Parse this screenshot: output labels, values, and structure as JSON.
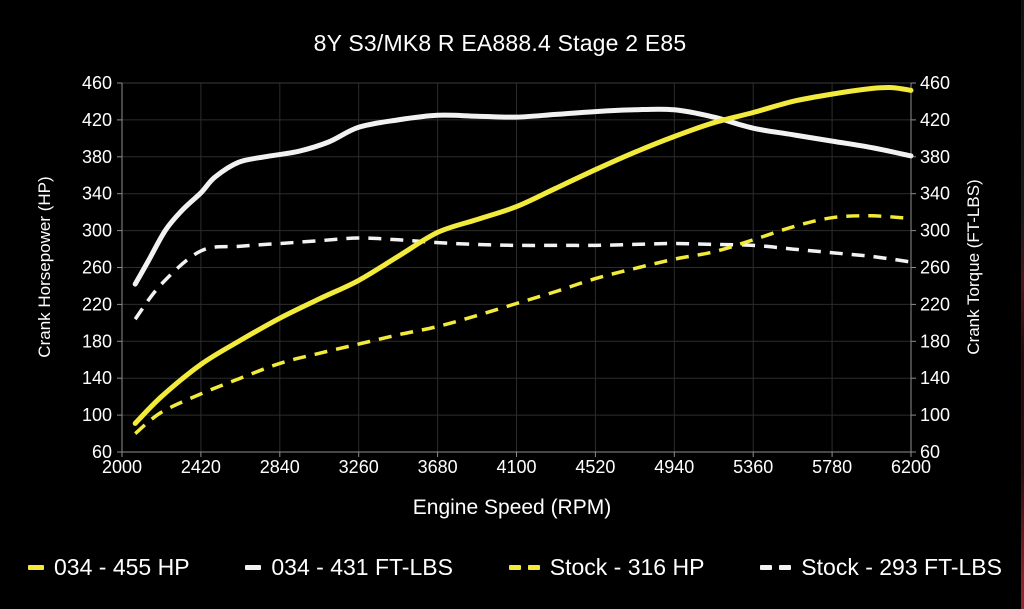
{
  "chart_data": {
    "type": "line",
    "title": "8Y S3/MK8 R EA888.4 Stage 2 E85",
    "xlabel": "Engine Speed (RPM)",
    "ylabel_left": "Crank Horsepower (HP)",
    "ylabel_right": "Crank Torque (FT-LBS)",
    "x_range": [
      2000,
      6200
    ],
    "y_range": [
      60,
      460
    ],
    "x_ticks": [
      2000,
      2420,
      2840,
      3260,
      3680,
      4100,
      4520,
      4940,
      5360,
      5780,
      6200
    ],
    "y_ticks": [
      60,
      100,
      140,
      180,
      220,
      260,
      300,
      340,
      380,
      420,
      460
    ],
    "grid": true,
    "legend_position": "bottom",
    "background_color": "#000000",
    "grid_color": "#2c2c2c",
    "border_top_color": "#3a3a3a",
    "axis_color": "#8e8e8e",
    "text_color": "#ffffff",
    "series": [
      {
        "name": "034 - 455 HP",
        "color": "#f3eb3c",
        "line_style": "solid",
        "axis": "left-hp",
        "points": [
          [
            2070,
            91
          ],
          [
            2210,
            120
          ],
          [
            2420,
            155
          ],
          [
            2630,
            181
          ],
          [
            2840,
            205
          ],
          [
            3050,
            226
          ],
          [
            3260,
            246
          ],
          [
            3470,
            272
          ],
          [
            3680,
            298
          ],
          [
            3890,
            312
          ],
          [
            4100,
            326
          ],
          [
            4310,
            346
          ],
          [
            4520,
            366
          ],
          [
            4730,
            385
          ],
          [
            4940,
            402
          ],
          [
            5150,
            417
          ],
          [
            5360,
            428
          ],
          [
            5570,
            440
          ],
          [
            5780,
            448
          ],
          [
            5990,
            454
          ],
          [
            6100,
            455
          ],
          [
            6200,
            452
          ]
        ]
      },
      {
        "name": "034 - 431 FT-LBS",
        "color": "#f2f2f2",
        "line_style": "solid",
        "axis": "right-torque",
        "points": [
          [
            2070,
            242
          ],
          [
            2140,
            267
          ],
          [
            2230,
            300
          ],
          [
            2320,
            322
          ],
          [
            2420,
            341
          ],
          [
            2495,
            358
          ],
          [
            2620,
            374
          ],
          [
            2760,
            380
          ],
          [
            2940,
            386
          ],
          [
            3100,
            396
          ],
          [
            3260,
            412
          ],
          [
            3470,
            420
          ],
          [
            3680,
            425
          ],
          [
            3890,
            424
          ],
          [
            4100,
            423
          ],
          [
            4310,
            426
          ],
          [
            4520,
            429
          ],
          [
            4730,
            431
          ],
          [
            4940,
            431
          ],
          [
            5150,
            423
          ],
          [
            5360,
            411
          ],
          [
            5570,
            404
          ],
          [
            5780,
            397
          ],
          [
            5990,
            390
          ],
          [
            6200,
            381
          ]
        ]
      },
      {
        "name": "Stock - 316 HP",
        "color": "#f3eb3c",
        "line_style": "dashed",
        "axis": "left-hp",
        "points": [
          [
            2070,
            80
          ],
          [
            2210,
            103
          ],
          [
            2420,
            123
          ],
          [
            2630,
            140
          ],
          [
            2840,
            156
          ],
          [
            3050,
            167
          ],
          [
            3260,
            177
          ],
          [
            3470,
            187
          ],
          [
            3680,
            196
          ],
          [
            3890,
            208
          ],
          [
            4100,
            221
          ],
          [
            4310,
            234
          ],
          [
            4520,
            248
          ],
          [
            4730,
            259
          ],
          [
            4940,
            269
          ],
          [
            5150,
            277
          ],
          [
            5360,
            290
          ],
          [
            5570,
            304
          ],
          [
            5780,
            314
          ],
          [
            5990,
            316
          ],
          [
            6200,
            313
          ]
        ]
      },
      {
        "name": "Stock - 293 FT-LBS",
        "color": "#f2f2f2",
        "line_style": "dashed",
        "axis": "right-torque",
        "points": [
          [
            2070,
            204
          ],
          [
            2210,
            242
          ],
          [
            2420,
            278
          ],
          [
            2630,
            283
          ],
          [
            2840,
            286
          ],
          [
            3050,
            289
          ],
          [
            3260,
            292
          ],
          [
            3470,
            290
          ],
          [
            3680,
            287
          ],
          [
            3890,
            285
          ],
          [
            4100,
            284
          ],
          [
            4310,
            284
          ],
          [
            4520,
            284
          ],
          [
            4730,
            285
          ],
          [
            4940,
            286
          ],
          [
            5150,
            285
          ],
          [
            5360,
            284
          ],
          [
            5570,
            280
          ],
          [
            5780,
            276
          ],
          [
            5990,
            272
          ],
          [
            6200,
            266
          ]
        ]
      }
    ]
  },
  "edge_strip_color": "#8c2129"
}
